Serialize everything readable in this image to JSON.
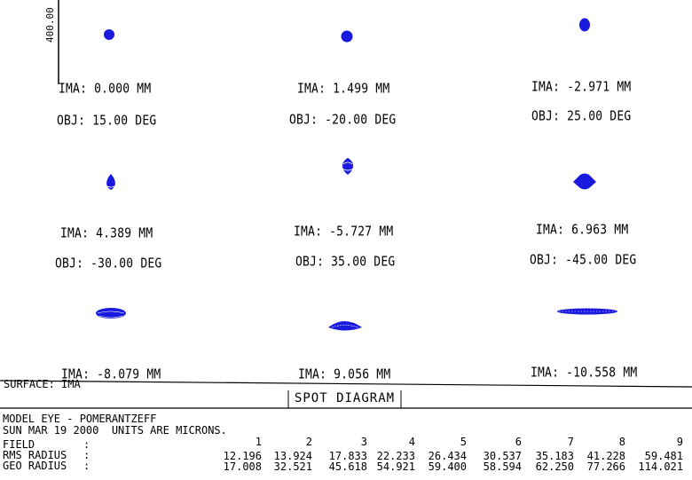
{
  "scale_bar": {
    "label": "400.00"
  },
  "spots": [
    {
      "ima": "IMA: 0.000 MM",
      "obj": "OBJ: 15.00 DEG",
      "shape": "round"
    },
    {
      "ima": "IMA: 1.499 MM",
      "obj": "OBJ: -20.00 DEG",
      "shape": "round"
    },
    {
      "ima": "IMA: -2.971 MM",
      "obj": "OBJ: 25.00 DEG",
      "shape": "round"
    },
    {
      "ima": "IMA: 4.389 MM",
      "obj": "OBJ: -30.00 DEG",
      "shape": "drop"
    },
    {
      "ima": "IMA: -5.727 MM",
      "obj": "OBJ: 35.00 DEG",
      "shape": "drop"
    },
    {
      "ima": "IMA: 6.963 MM",
      "obj": "OBJ: -45.00 DEG",
      "shape": "diamond"
    },
    {
      "ima": "IMA: -8.079 MM",
      "obj": "",
      "shape": "flat"
    },
    {
      "ima": "IMA: 9.056 MM",
      "obj": "",
      "shape": "flat"
    },
    {
      "ima": "IMA: -10.558 MM",
      "obj": "",
      "shape": "line"
    }
  ],
  "surface_label": "SURFACE: IMA",
  "title": "SPOT DIAGRAM",
  "footer": {
    "line1": "MODEL EYE - POMERANTZEFF",
    "line2": "SUN MAR 19 2000  UNITS ARE MICRONS.",
    "field_label": "FIELD",
    "rms_label": "RMS RADIUS",
    "geo_label": "GEO RADIUS",
    "colon": ":",
    "fields": [
      "1",
      "2",
      "3",
      "4",
      "5",
      "6",
      "7",
      "8",
      "9"
    ],
    "rms": [
      "12.196",
      "13.924",
      "17.833",
      "22.233",
      "26.434",
      "30.537",
      "35.183",
      "41.228",
      "59.481"
    ],
    "geo": [
      "17.008",
      "32.521",
      "45.618",
      "54.921",
      "59.400",
      "58.594",
      "62.250",
      "77.266",
      "114.021"
    ]
  },
  "colors": {
    "spot": "#1a1adf",
    "ink": "#000000"
  }
}
